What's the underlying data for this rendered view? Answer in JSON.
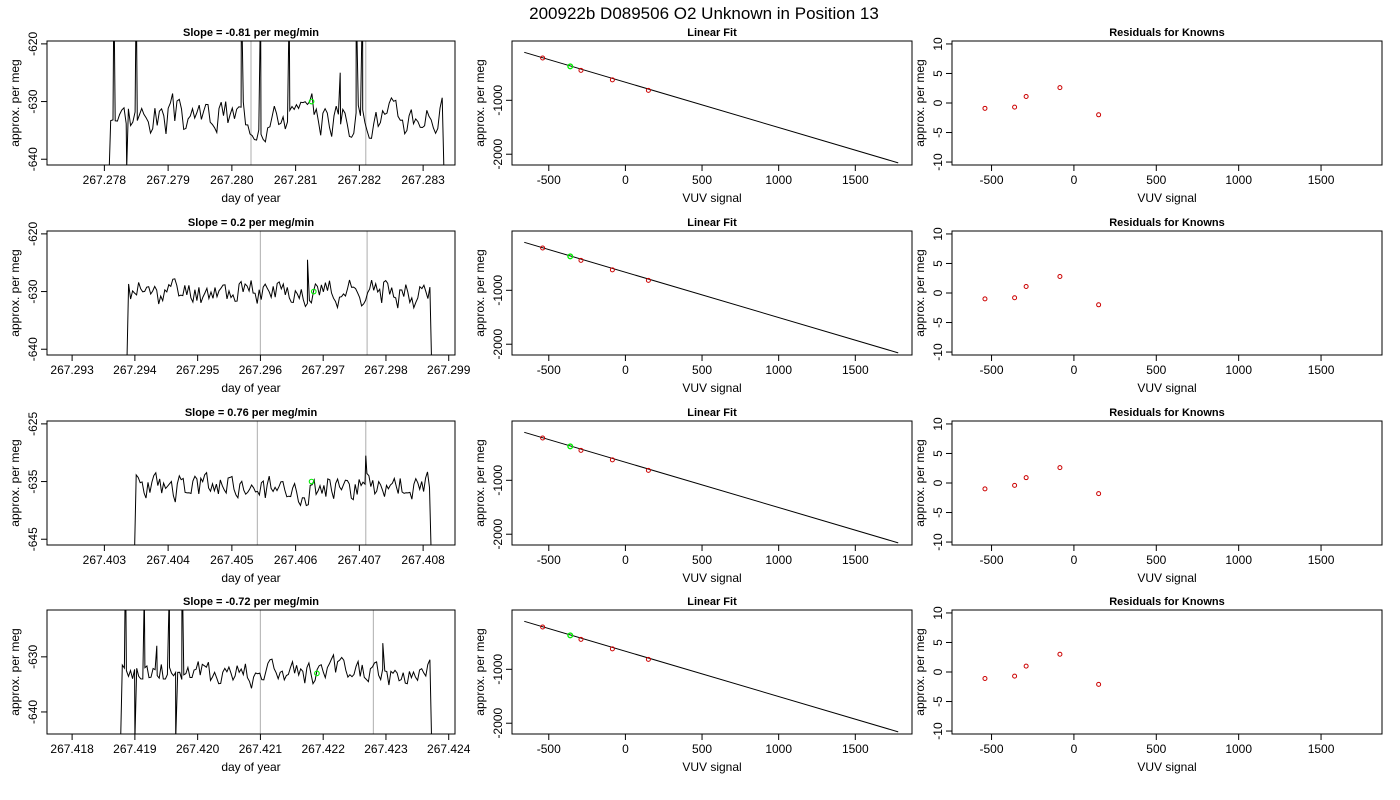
{
  "figure_title": "200922b     D089506   O2 Unknown in Position  13",
  "series_colors": {
    "trace": "#000000",
    "known": "#cc0000",
    "unknown": "#00ee00",
    "marker_line": "#bbbbbb"
  },
  "chart_data": [
    {
      "type": "line",
      "title": "Slope =  -0.81  per meg/min",
      "xlabel": "day of year",
      "ylabel": "approx. per meg",
      "x_ticks": [
        "267.278",
        "267.279",
        "267.280",
        "267.281",
        "267.282",
        "267.283"
      ],
      "y_ticks": [
        "-620",
        "-630",
        "-640"
      ],
      "xlim": [
        267.2771,
        267.2835
      ],
      "ylim": [
        -641,
        -619.5
      ],
      "x_range": [
        267.2781,
        267.2833
      ],
      "seed": 3,
      "base": -632.5,
      "amp": 2.6,
      "vlines": [
        267.2803,
        267.2821
      ],
      "unknown_point": [
        267.28125,
        -630.0
      ],
      "spikes": [
        [
          267.27815,
          -610
        ],
        [
          267.27835,
          -641.5
        ],
        [
          267.2785,
          -610
        ],
        [
          267.28015,
          -610
        ],
        [
          267.28045,
          -612
        ],
        [
          267.2809,
          -613
        ],
        [
          267.2817,
          -625
        ],
        [
          267.28195,
          -612
        ],
        [
          267.28205,
          -610
        ]
      ]
    },
    {
      "type": "scatter",
      "title": "Linear Fit",
      "xlabel": "VUV signal",
      "ylabel": "approx. per meg",
      "x_ticks": [
        "-500",
        "0",
        "500",
        "1000",
        "1500"
      ],
      "y_ticks": [
        "-1000",
        "-2000"
      ],
      "xlim": [
        -740,
        1870
      ],
      "ylim": [
        -2200,
        100
      ],
      "fit_line": [
        [
          -660,
          -110
        ],
        [
          1780,
          -2160
        ]
      ],
      "knowns": [
        [
          -540,
          -215
        ],
        [
          -290,
          -445
        ],
        [
          -85,
          -620
        ],
        [
          150,
          -815
        ]
      ],
      "unknown": [
        -360,
        -370
      ]
    },
    {
      "type": "scatter",
      "title": "Residuals for Knowns",
      "xlabel": "VUV signal",
      "ylabel": "approx. per meg",
      "x_ticks": [
        "-500",
        "0",
        "500",
        "1000",
        "1500"
      ],
      "y_ticks": [
        "10",
        "5",
        "0",
        "-5",
        "-10"
      ],
      "xlim": [
        -740,
        1870
      ],
      "ylim": [
        -10.5,
        10.5
      ],
      "points": [
        [
          -540,
          -0.9
        ],
        [
          -360,
          -0.7
        ],
        [
          -290,
          1.1
        ],
        [
          -85,
          2.6
        ],
        [
          150,
          -2.0
        ]
      ]
    },
    {
      "type": "line",
      "title": "Slope =  0.2  per meg/min",
      "xlabel": "day of year",
      "ylabel": "approx. per meg",
      "x_ticks": [
        "267.293",
        "267.294",
        "267.295",
        "267.296",
        "267.297",
        "267.298",
        "267.299"
      ],
      "y_ticks": [
        "-620",
        "-630",
        "-640"
      ],
      "xlim": [
        267.2926,
        267.2991
      ],
      "ylim": [
        -641,
        -619.5
      ],
      "x_range": [
        267.2939,
        267.2987
      ],
      "seed": 11,
      "base": -630.0,
      "amp": 1.9,
      "vlines": [
        267.296,
        267.2977
      ],
      "unknown_point": [
        267.29685,
        -630.0
      ],
      "spikes": [
        [
          267.29675,
          -624.5
        ]
      ]
    },
    {
      "type": "scatter",
      "title": "Linear Fit",
      "xlabel": "VUV signal",
      "ylabel": "approx. per meg",
      "x_ticks": [
        "-500",
        "0",
        "500",
        "1000",
        "1500"
      ],
      "y_ticks": [
        "-1000",
        "-2000"
      ],
      "xlim": [
        -740,
        1870
      ],
      "ylim": [
        -2200,
        100
      ],
      "fit_line": [
        [
          -660,
          -110
        ],
        [
          1780,
          -2160
        ]
      ],
      "knowns": [
        [
          -540,
          -215
        ],
        [
          -290,
          -445
        ],
        [
          -85,
          -620
        ],
        [
          150,
          -815
        ]
      ],
      "unknown": [
        -360,
        -370
      ]
    },
    {
      "type": "scatter",
      "title": "Residuals for Knowns",
      "xlabel": "VUV signal",
      "ylabel": "approx. per meg",
      "x_ticks": [
        "-500",
        "0",
        "500",
        "1000",
        "1500"
      ],
      "y_ticks": [
        "10",
        "5",
        "0",
        "-5",
        "-10"
      ],
      "xlim": [
        -740,
        1870
      ],
      "ylim": [
        -10.5,
        10.5
      ],
      "points": [
        [
          -540,
          -1.0
        ],
        [
          -360,
          -0.8
        ],
        [
          -290,
          1.1
        ],
        [
          -85,
          2.8
        ],
        [
          150,
          -2.0
        ]
      ]
    },
    {
      "type": "line",
      "title": "Slope =  0.76  per meg/min",
      "xlabel": "day of year",
      "ylabel": "approx. per meg",
      "x_ticks": [
        "267.403",
        "267.404",
        "267.405",
        "267.406",
        "267.407",
        "267.408"
      ],
      "y_ticks": [
        "-625",
        "-635",
        "-645"
      ],
      "xlim": [
        267.4021,
        267.4085
      ],
      "ylim": [
        -646,
        -624.5
      ],
      "x_range": [
        267.4035,
        267.4081
      ],
      "seed": 23,
      "base": -636.0,
      "amp": 2.0,
      "vlines": [
        267.4054,
        267.4071
      ],
      "unknown_point": [
        267.40625,
        -635.0
      ],
      "spikes": [
        [
          267.4071,
          -630.5
        ]
      ]
    },
    {
      "type": "scatter",
      "title": "Linear Fit",
      "xlabel": "VUV signal",
      "ylabel": "approx. per meg",
      "x_ticks": [
        "-500",
        "0",
        "500",
        "1000",
        "1500"
      ],
      "y_ticks": [
        "-1000",
        "-2000"
      ],
      "xlim": [
        -740,
        1870
      ],
      "ylim": [
        -2200,
        100
      ],
      "fit_line": [
        [
          -660,
          -110
        ],
        [
          1780,
          -2160
        ]
      ],
      "knowns": [
        [
          -540,
          -215
        ],
        [
          -290,
          -445
        ],
        [
          -85,
          -620
        ],
        [
          150,
          -815
        ]
      ],
      "unknown": [
        -360,
        -370
      ]
    },
    {
      "type": "scatter",
      "title": "Residuals for Knowns",
      "xlabel": "VUV signal",
      "ylabel": "approx. per meg",
      "x_ticks": [
        "-500",
        "0",
        "500",
        "1000",
        "1500"
      ],
      "y_ticks": [
        "10",
        "5",
        "0",
        "-5",
        "-10"
      ],
      "xlim": [
        -740,
        1870
      ],
      "ylim": [
        -10.5,
        10.5
      ],
      "points": [
        [
          -540,
          -1.0
        ],
        [
          -360,
          -0.4
        ],
        [
          -290,
          0.9
        ],
        [
          -85,
          2.6
        ],
        [
          150,
          -1.8
        ]
      ]
    },
    {
      "type": "line",
      "title": "Slope =  -0.72  per meg/min",
      "xlabel": "day of year",
      "ylabel": "approx. per meg",
      "x_ticks": [
        "267.418",
        "267.419",
        "267.420",
        "267.421",
        "267.422",
        "267.423",
        "267.424"
      ],
      "y_ticks": [
        "-630",
        "-640"
      ],
      "xlim": [
        267.4176,
        267.4241
      ],
      "ylim": [
        -644,
        -621.5
      ],
      "x_range": [
        267.4188,
        267.4237
      ],
      "seed": 41,
      "base": -633.0,
      "amp": 2.0,
      "vlines": [
        267.421,
        267.4228
      ],
      "unknown_point": [
        267.4219,
        -633.0
      ],
      "spikes": [
        [
          267.41885,
          -611
        ],
        [
          267.419,
          -645
        ],
        [
          267.41915,
          -618
        ],
        [
          267.41935,
          -628
        ],
        [
          267.41955,
          -617
        ],
        [
          267.41965,
          -645
        ],
        [
          267.41975,
          -611
        ],
        [
          267.42295,
          -627.5
        ]
      ]
    },
    {
      "type": "scatter",
      "title": "Linear Fit",
      "xlabel": "VUV signal",
      "ylabel": "approx. per meg",
      "x_ticks": [
        "-500",
        "0",
        "500",
        "1000",
        "1500"
      ],
      "y_ticks": [
        "-1000",
        "-2000"
      ],
      "xlim": [
        -740,
        1870
      ],
      "ylim": [
        -2200,
        100
      ],
      "fit_line": [
        [
          -660,
          -110
        ],
        [
          1780,
          -2160
        ]
      ],
      "knowns": [
        [
          -540,
          -215
        ],
        [
          -290,
          -445
        ],
        [
          -85,
          -620
        ],
        [
          150,
          -815
        ]
      ],
      "unknown": [
        -360,
        -370
      ]
    },
    {
      "type": "scatter",
      "title": "Residuals for Knowns",
      "xlabel": "VUV signal",
      "ylabel": "approx. per meg",
      "x_ticks": [
        "-500",
        "0",
        "500",
        "1000",
        "1500"
      ],
      "y_ticks": [
        "10",
        "5",
        "0",
        "-5",
        "-10"
      ],
      "xlim": [
        -740,
        1870
      ],
      "ylim": [
        -10.5,
        10.5
      ],
      "points": [
        [
          -540,
          -1.1
        ],
        [
          -360,
          -0.7
        ],
        [
          -290,
          1.0
        ],
        [
          -85,
          3.0
        ],
        [
          150,
          -2.1
        ]
      ]
    }
  ]
}
